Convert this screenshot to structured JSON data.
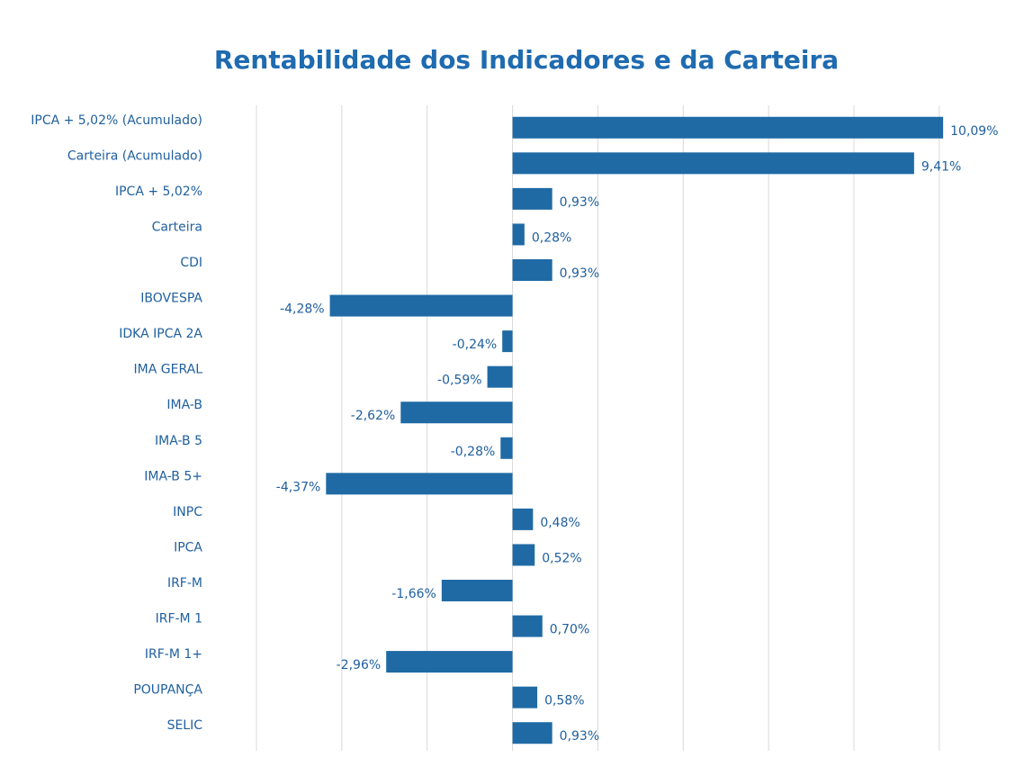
{
  "chart_data": {
    "type": "bar",
    "orientation": "horizontal",
    "title": "Rentabilidade dos Indicadores e da Carteira",
    "categories": [
      "IPCA + 5,02% (Acumulado)",
      "Carteira (Acumulado)",
      "IPCA + 5,02%",
      "Carteira",
      "CDI",
      "IBOVESPA",
      "IDKA IPCA 2A",
      "IMA GERAL",
      "IMA-B",
      "IMA-B 5",
      "IMA-B 5+",
      "INPC",
      "IPCA",
      "IRF-M",
      "IRF-M 1",
      "IRF-M 1+",
      "POUPANÇA",
      "SELIC"
    ],
    "values": [
      10.09,
      9.41,
      0.93,
      0.28,
      0.93,
      -4.28,
      -0.24,
      -0.59,
      -2.62,
      -0.28,
      -4.37,
      0.48,
      0.52,
      -1.66,
      0.7,
      -2.96,
      0.58,
      0.93
    ],
    "value_labels": [
      "10,09%",
      "9,41%",
      "0,93%",
      "0,28%",
      "0,93%",
      "-4,28%",
      "-0,24%",
      "-0,59%",
      "-2,62%",
      "-0,28%",
      "-4,37%",
      "0,48%",
      "0,52%",
      "-1,66%",
      "0,70%",
      "-2,96%",
      "0,58%",
      "0,93%"
    ],
    "color": "#1f6aa5",
    "xlim": [
      -6,
      11.5
    ],
    "xticks": [
      -6,
      -4,
      -2,
      0,
      2,
      4,
      6,
      8,
      10
    ],
    "grid": true
  }
}
